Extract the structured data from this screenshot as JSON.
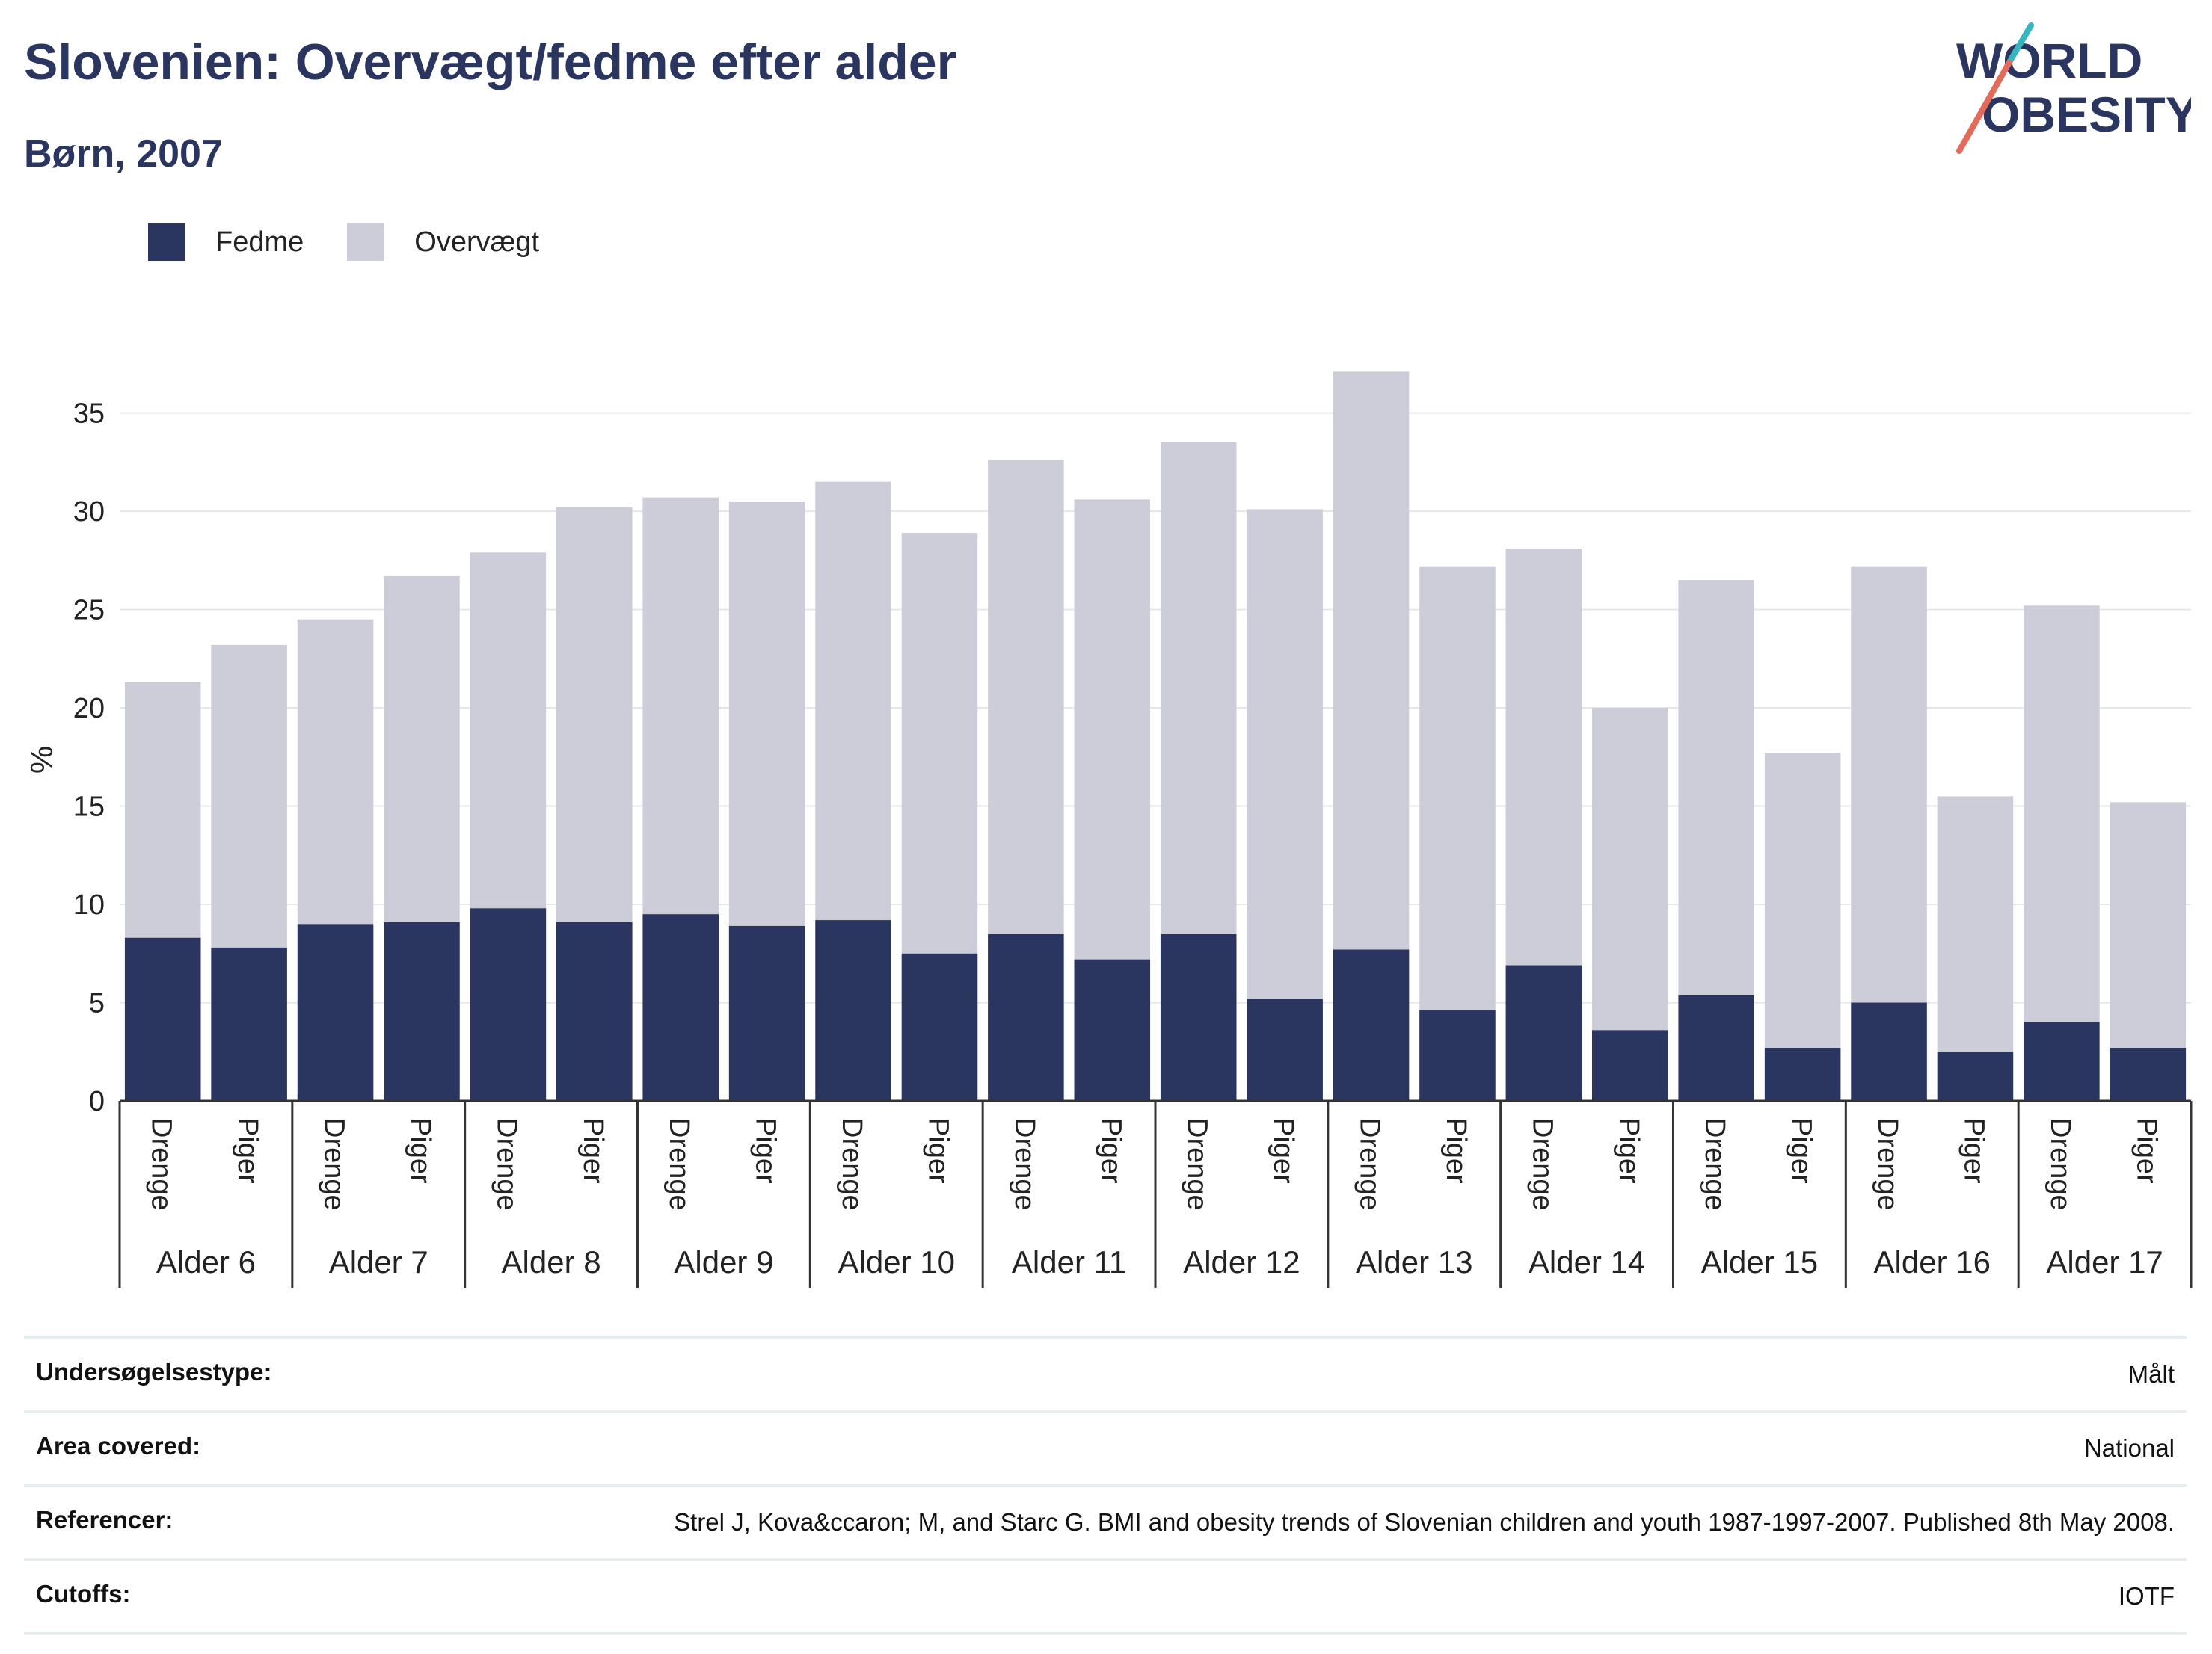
{
  "title": "Slovenien: Overvægt/fedme efter alder",
  "subtitle": "Børn, 2007",
  "logo": {
    "line1": "WORLD",
    "line2": "OBESITY"
  },
  "colors": {
    "fedme": "#2a3560",
    "overvaegt": "#cccdd9",
    "grid": "#e6e6ea",
    "axis": "#333333"
  },
  "legend": [
    {
      "label": "Fedme",
      "color": "#2a3560"
    },
    {
      "label": "Overvægt",
      "color": "#cccdd9"
    }
  ],
  "chart_data": {
    "type": "bar",
    "stacked": true,
    "ylabel": "%",
    "ylim": [
      0,
      37
    ],
    "yticks": [
      0,
      5,
      10,
      15,
      20,
      25,
      30,
      35
    ],
    "groups": [
      "Alder 6",
      "Alder 7",
      "Alder 8",
      "Alder 9",
      "Alder 10",
      "Alder 11",
      "Alder 12",
      "Alder 13",
      "Alder 14",
      "Alder 15",
      "Alder 16",
      "Alder 17"
    ],
    "subcategories": [
      "Drenge",
      "Piger"
    ],
    "series": [
      {
        "name": "Fedme",
        "values": [
          8.3,
          7.8,
          9.0,
          9.1,
          9.8,
          9.1,
          9.5,
          8.9,
          9.2,
          7.5,
          8.5,
          7.2,
          8.5,
          5.2,
          7.7,
          4.6,
          6.9,
          3.6,
          5.4,
          2.7,
          5.0,
          2.5,
          4.0,
          2.7
        ]
      },
      {
        "name": "Overvægt",
        "values": [
          13.0,
          15.4,
          15.5,
          17.6,
          18.1,
          21.1,
          21.2,
          21.6,
          22.3,
          21.4,
          24.1,
          23.4,
          25.0,
          24.9,
          29.4,
          22.6,
          21.2,
          16.4,
          21.1,
          15.0,
          22.2,
          13.0,
          21.2,
          12.5
        ]
      }
    ],
    "grid": true,
    "legend_position": "top-left"
  },
  "info_table": [
    {
      "key": "Undersøgelsestype:",
      "value": "Målt"
    },
    {
      "key": "Area covered:",
      "value": "National"
    },
    {
      "key": "Referencer:",
      "value": "Strel J, Kova&ccaron; M, and Starc G. BMI and obesity trends of Slovenian children and youth 1987-1997-2007. Published 8th May 2008."
    },
    {
      "key": "Cutoffs:",
      "value": "IOTF"
    }
  ]
}
